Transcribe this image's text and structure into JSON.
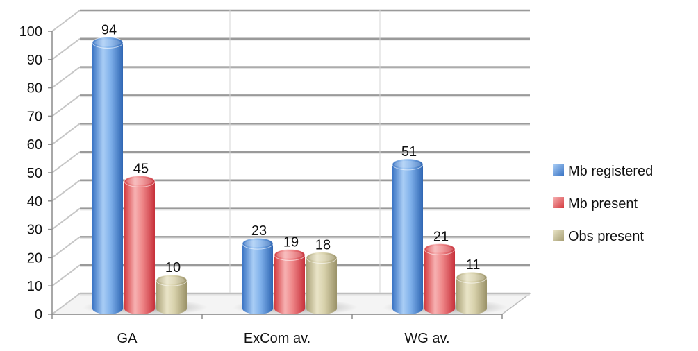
{
  "chart_data": {
    "type": "bar",
    "categories": [
      "GA",
      "ExCom av.",
      "WG av."
    ],
    "series": [
      {
        "name": "Mb registered",
        "values": [
          94,
          23,
          51
        ],
        "color": "#5b9bd5"
      },
      {
        "name": "Mb present",
        "values": [
          45,
          19,
          21
        ],
        "color": "#e8686a"
      },
      {
        "name": "Obs present",
        "values": [
          10,
          18,
          11
        ],
        "color": "#c9c29a"
      }
    ],
    "ylim": [
      0,
      100
    ],
    "yticks": [
      "0",
      "10",
      "20",
      "30",
      "40",
      "50",
      "60",
      "70",
      "80",
      "90",
      "100"
    ],
    "grid": true,
    "legend": "right",
    "style": "3d-cylinder"
  }
}
